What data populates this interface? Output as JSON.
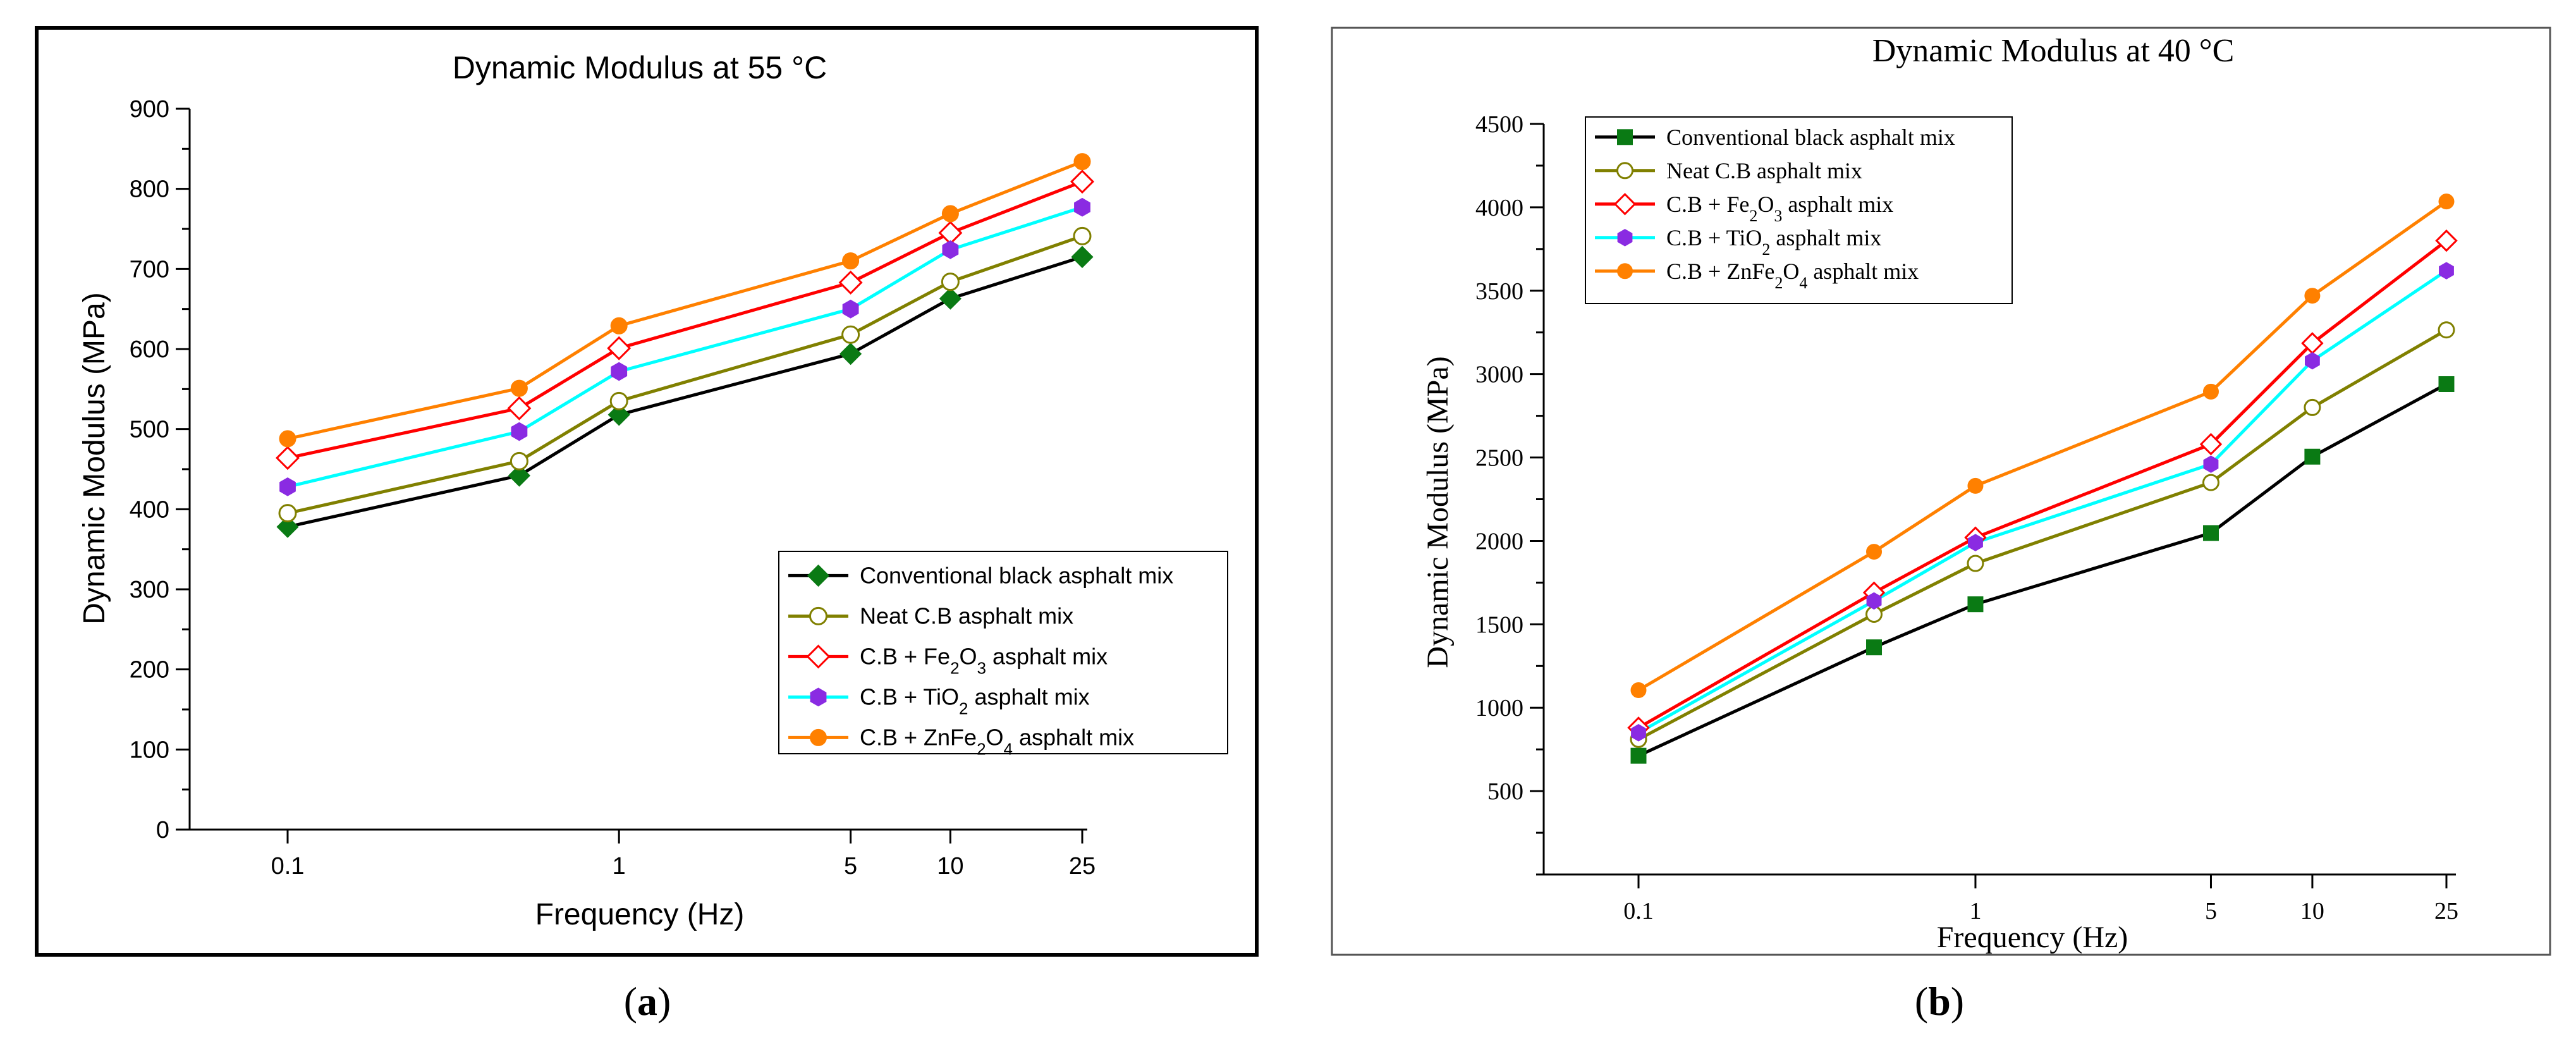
{
  "chart_data": [
    {
      "panel_label": "a",
      "type": "line",
      "title": "Dynamic Modulus at 55 °C",
      "xlabel": "Frequency (Hz)",
      "ylabel": "Dynamic Modulus (MPa)",
      "x_scale": "log",
      "x": [
        0.1,
        0.5,
        1,
        5,
        10,
        25
      ],
      "x_tick_labels": [
        "0.1",
        "1",
        "5",
        "10",
        "25"
      ],
      "x_tick_values": [
        0.1,
        1,
        5,
        10,
        25
      ],
      "ylim": [
        0,
        900
      ],
      "y_ticks": [
        0,
        100,
        200,
        300,
        400,
        500,
        600,
        700,
        800,
        900
      ],
      "legend_position": "lower-right",
      "series": [
        {
          "name": "Conventional black asphalt mix",
          "legend_html": "Conventional black asphalt mix",
          "color": "#000000",
          "marker": "diamond",
          "marker_color": "#0a7a14",
          "hollow": false,
          "values": [
            378,
            442,
            518,
            594,
            663,
            715
          ]
        },
        {
          "name": "Neat C.B asphalt mix",
          "legend_html": "Neat C.B asphalt mix",
          "color": "#808000",
          "marker": "circle",
          "marker_color": "#808000",
          "hollow": true,
          "values": [
            395,
            460,
            535,
            618,
            684,
            741
          ]
        },
        {
          "name": "C.B + Fe2O3 asphalt mix",
          "legend_html": "C.B + Fe<tspan baseline-shift=\"sub\" font-size=\"26\">2</tspan>O<tspan baseline-shift=\"sub\" font-size=\"26\">3</tspan> asphalt mix",
          "color": "#ff0000",
          "marker": "diamond",
          "marker_color": "#ff0000",
          "hollow": true,
          "values": [
            464,
            526,
            601,
            683,
            745,
            809
          ]
        },
        {
          "name": "C.B + TiO2 asphalt mix",
          "legend_html": "C.B + TiO<tspan baseline-shift=\"sub\" font-size=\"26\">2</tspan> asphalt mix",
          "color": "#00ffff",
          "marker": "hexagon",
          "marker_color": "#8a2be2",
          "hollow": false,
          "values": [
            428,
            497,
            572,
            650,
            724,
            777
          ]
        },
        {
          "name": "C.B + ZnFe2O4 asphalt mix",
          "legend_html": "C.B + ZnFe<tspan baseline-shift=\"sub\" font-size=\"26\">2</tspan>O<tspan baseline-shift=\"sub\" font-size=\"26\">4</tspan> asphalt mix",
          "color": "#ff8000",
          "marker": "circle",
          "marker_color": "#ff8000",
          "hollow": false,
          "values": [
            488,
            551,
            629,
            710,
            769,
            834
          ]
        }
      ]
    },
    {
      "panel_label": "b",
      "type": "line",
      "title": "Dynamic Modulus at 40 °C",
      "xlabel": "Frequency (Hz)",
      "ylabel": "Dynamic Modulus (MPa)",
      "x_scale": "log",
      "x": [
        0.1,
        0.5,
        1,
        5,
        10,
        25
      ],
      "x_tick_labels": [
        "0.1",
        "1",
        "5",
        "10",
        "25"
      ],
      "x_tick_values": [
        0.1,
        1,
        5,
        10,
        25
      ],
      "ylim": [
        0,
        4500
      ],
      "y_ticks": [
        500,
        1000,
        1500,
        2000,
        2500,
        3000,
        3500,
        4000,
        4500
      ],
      "legend_position": "top-left",
      "series": [
        {
          "name": "Conventional black asphalt mix",
          "legend_html": "Conventional black asphalt mix",
          "color": "#000000",
          "marker": "square",
          "marker_color": "#0a7a14",
          "hollow": false,
          "values": [
            712,
            1362,
            1620,
            2047,
            2505,
            2940
          ]
        },
        {
          "name": "Neat C.B asphalt mix",
          "legend_html": "Neat C.B asphalt mix",
          "color": "#808000",
          "marker": "circle",
          "marker_color": "#808000",
          "hollow": true,
          "values": [
            810,
            1560,
            1865,
            2350,
            2800,
            3265
          ]
        },
        {
          "name": "C.B + Fe2O3 asphalt mix",
          "legend_html": "C.B + Fe<tspan baseline-shift=\"sub\" font-size=\"26\">2</tspan>O<tspan baseline-shift=\"sub\" font-size=\"26\">3</tspan> asphalt mix",
          "color": "#ff0000",
          "marker": "diamond",
          "marker_color": "#ff0000",
          "hollow": true,
          "values": [
            880,
            1690,
            2020,
            2580,
            3185,
            3800
          ]
        },
        {
          "name": "C.B + TiO2 asphalt mix",
          "legend_html": "C.B + TiO<tspan baseline-shift=\"sub\" font-size=\"26\">2</tspan> asphalt mix",
          "color": "#00ffff",
          "marker": "hexagon",
          "marker_color": "#8a2be2",
          "hollow": false,
          "values": [
            850,
            1640,
            1990,
            2460,
            3080,
            3620
          ]
        },
        {
          "name": "C.B + ZnFe2O4 asphalt mix",
          "legend_html": "C.B + ZnFe<tspan baseline-shift=\"sub\" font-size=\"26\">2</tspan>O<tspan baseline-shift=\"sub\" font-size=\"26\">4</tspan> asphalt mix",
          "color": "#ff8000",
          "marker": "circle",
          "marker_color": "#ff8000",
          "hollow": false,
          "values": [
            1105,
            1935,
            2330,
            2895,
            3470,
            4035
          ]
        }
      ]
    }
  ]
}
